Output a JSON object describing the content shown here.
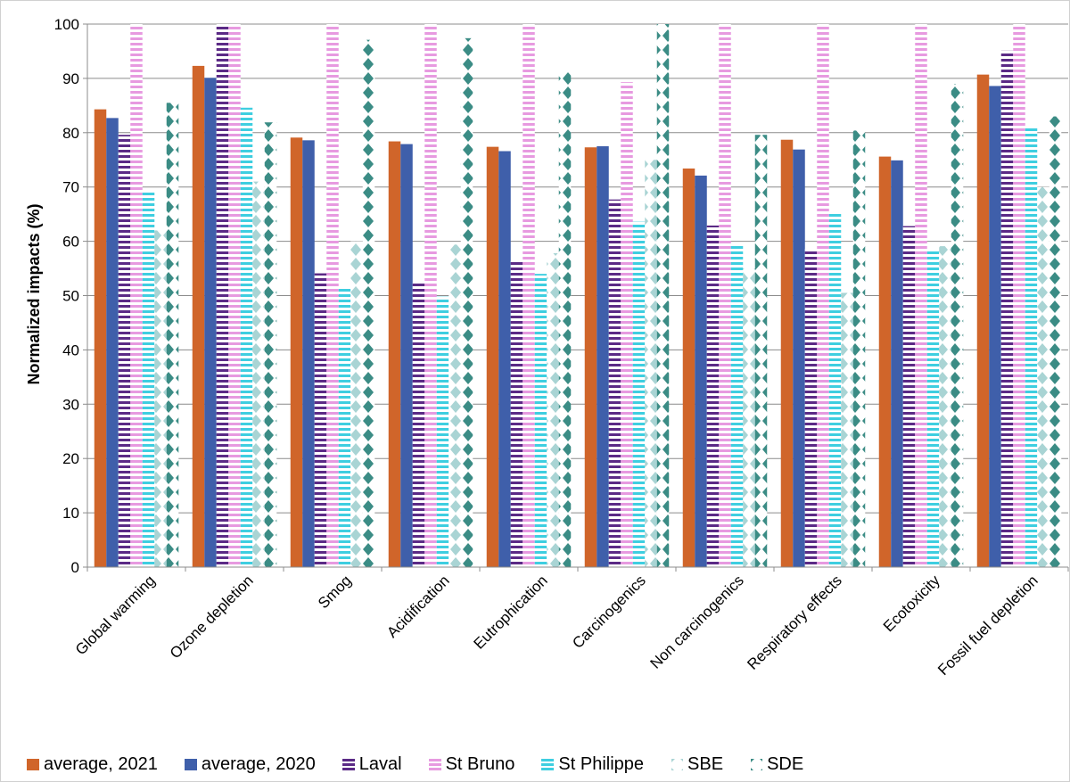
{
  "chart_data": {
    "type": "bar",
    "title": "",
    "xlabel": "",
    "ylabel": "Normalized impacts (%)",
    "ylim": [
      0,
      100
    ],
    "yticks": [
      0,
      10,
      20,
      30,
      40,
      50,
      60,
      70,
      80,
      90,
      100
    ],
    "grid": true,
    "legend_placement": "bottom",
    "categories": [
      "Global warming",
      "Ozone depletion",
      "Smog",
      "Acidification",
      "Eutrophication",
      "Carcinogenics",
      "Non carcinogenics",
      "Respiratory effects",
      "Ecotoxicity",
      "Fossil fuel depletion"
    ],
    "series": [
      {
        "name": "average, 2021",
        "color": "#D0652A",
        "pattern": "solid",
        "values": [
          84.3,
          92.3,
          79.1,
          78.4,
          77.4,
          77.3,
          73.4,
          78.7,
          75.6,
          90.7
        ]
      },
      {
        "name": "average, 2020",
        "color": "#3F5FAA",
        "pattern": "solid",
        "values": [
          82.7,
          90.1,
          78.6,
          77.9,
          76.6,
          77.5,
          72.1,
          76.9,
          74.9,
          88.6
        ]
      },
      {
        "name": "Laval",
        "color": "#5B2A86",
        "pattern": "horizontal-stripes",
        "values": [
          79.6,
          100,
          54.1,
          52.3,
          56.4,
          67.7,
          62.9,
          58.6,
          62.8,
          95.1
        ]
      },
      {
        "name": "St Bruno",
        "color": "#E79AE0",
        "pattern": "horizontal-stripes",
        "values": [
          100,
          100,
          100,
          100,
          100,
          89.3,
          100,
          100,
          100,
          100
        ]
      },
      {
        "name": "St Philippe",
        "color": "#3ECEE0",
        "pattern": "horizontal-stripes",
        "values": [
          69.3,
          84.6,
          51.3,
          49.8,
          54.0,
          63.6,
          59.2,
          65.4,
          58.3,
          81.1
        ]
      },
      {
        "name": "SBE",
        "color": "#A9D4D4",
        "pattern": "diamonds",
        "values": [
          62.0,
          71.0,
          60.0,
          59.4,
          57.8,
          75.0,
          55.0,
          50.5,
          59.1,
          70.0
        ]
      },
      {
        "name": "SDE",
        "color": "#3B8C85",
        "pattern": "diamonds",
        "values": [
          85.5,
          81.9,
          97.1,
          97.4,
          91.1,
          100,
          79.6,
          80.4,
          89.0,
          83.0
        ]
      }
    ]
  }
}
